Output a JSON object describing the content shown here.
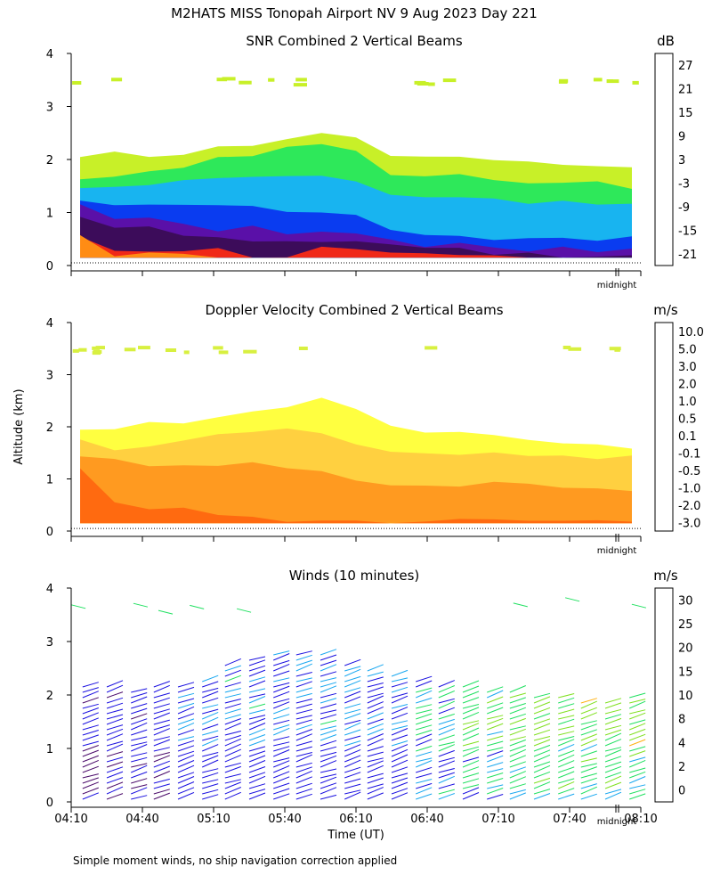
{
  "title": "M2HATS MISS Tonopah Airport NV   9 Aug 2023 Day 221",
  "footnote": "Simple moment winds, no ship navigation correction applied",
  "colors": {
    "snr": [
      "#c8f028",
      "#2ee85a",
      "#18b4f0",
      "#0a3cf0",
      "#5a10a8",
      "#3c0c5a",
      "#f02818",
      "#ff8c14",
      "#ffb800"
    ],
    "velocity": [
      "#ff1a1a",
      "#ff6a10",
      "#ff9a20",
      "#ffd040",
      "#ffff40",
      "#d8f040",
      "#9aeb30",
      "#30e020",
      "#1aa8ff",
      "#1040f0",
      "#2818d8",
      "#4a10a0",
      "#3a0a3a"
    ],
    "wind": [
      "#000000",
      "#4a0a6a",
      "#1a10e0",
      "#1aa8f0",
      "#20e060",
      "#80e020",
      "#ffb010",
      "#ff6010",
      "#ff2010"
    ]
  },
  "chart_data": [
    {
      "type": "heatmap",
      "title": "SNR Combined 2 Vertical Beams",
      "ylabel": "",
      "xlabel": "",
      "x": [
        "04:10",
        "04:40",
        "05:10",
        "05:40",
        "06:10",
        "06:40",
        "07:10",
        "07:40",
        "08:10"
      ],
      "ylim": [
        0,
        4
      ],
      "yticks": [
        "0",
        "1",
        "2",
        "3",
        "4"
      ],
      "xmarker": "midnight",
      "colorbar": {
        "unit": "dB",
        "labels": [
          "-21",
          "-15",
          "-9",
          "-3",
          "3",
          "9",
          "15",
          "21",
          "27"
        ]
      },
      "layers": [
        {
          "value": -21,
          "top_km": [
            2.0,
            2.1,
            2.1,
            2.1,
            2.2,
            2.3,
            2.4,
            2.5,
            2.4,
            2.1,
            2.1,
            2.0,
            2.0,
            2.0,
            1.9,
            1.9,
            1.9
          ]
        },
        {
          "value": -15,
          "top_km": [
            1.6,
            1.7,
            1.8,
            1.9,
            2.0,
            2.1,
            2.2,
            2.3,
            2.2,
            1.7,
            1.7,
            1.7,
            1.6,
            1.6,
            1.6,
            1.6,
            1.5
          ]
        },
        {
          "value": -9,
          "top_km": [
            1.4,
            1.5,
            1.5,
            1.6,
            1.6,
            1.7,
            1.7,
            1.7,
            1.6,
            1.3,
            1.3,
            1.3,
            1.3,
            1.2,
            1.2,
            1.2,
            1.2
          ]
        },
        {
          "value": -3,
          "top_km": [
            1.2,
            1.1,
            1.1,
            1.1,
            1.1,
            1.1,
            1.0,
            1.0,
            0.9,
            0.7,
            0.6,
            0.6,
            0.5,
            0.5,
            0.5,
            0.5,
            0.5
          ]
        },
        {
          "value": 3,
          "top_km": [
            1.1,
            0.9,
            0.9,
            0.8,
            0.7,
            0.7,
            0.6,
            0.6,
            0.6,
            0.5,
            0.4,
            0.4,
            0.3,
            0.3,
            0.3,
            0.3,
            0.3
          ]
        },
        {
          "value": 9,
          "top_km": [
            0.9,
            0.7,
            0.7,
            0.6,
            0.5,
            0.5,
            0.4,
            0.5,
            0.4,
            0.4,
            0.3,
            0.3,
            0.25,
            0.25,
            0.2,
            0.2,
            0.2
          ]
        },
        {
          "value": 15,
          "top_km": [
            0.6,
            0.3,
            0.3,
            0.3,
            0.3,
            0.2,
            0.2,
            0.3,
            0.3,
            0.3,
            0.25,
            0.25,
            0.2,
            0.0,
            0.0,
            0.0,
            0.0
          ]
        },
        {
          "value": 21,
          "top_km": [
            0.55,
            0.2,
            0.2,
            0.2,
            0.1,
            0.0,
            0.0,
            0.0,
            0.0,
            0.0,
            0.0,
            0.0,
            0.0,
            0.0,
            0.0,
            0.0,
            0.0
          ]
        }
      ],
      "upper_layer": {
        "value": -21,
        "altitude_km": 3.5
      }
    },
    {
      "type": "heatmap",
      "title": "Doppler Velocity Combined 2 Vertical Beams",
      "ylabel": "Altitude (km)",
      "xlabel": "",
      "x": [
        "04:10",
        "04:40",
        "05:10",
        "05:40",
        "06:10",
        "06:40",
        "07:10",
        "07:40",
        "08:10"
      ],
      "ylim": [
        0,
        4
      ],
      "yticks": [
        "0",
        "1",
        "2",
        "3",
        "4"
      ],
      "xmarker": "midnight",
      "colorbar": {
        "unit": "m/s",
        "labels": [
          "-3.0",
          "-2.0",
          "-1.0",
          "-0.5",
          "-0.1",
          "0.1",
          "0.5",
          "1.0",
          "2.0",
          "3.0",
          "5.0",
          "10.0"
        ]
      },
      "layers": [
        {
          "value": -0.1,
          "top_km": [
            2.0,
            2.0,
            2.1,
            2.1,
            2.2,
            2.3,
            2.4,
            2.5,
            2.4,
            2.0,
            1.9,
            1.9,
            1.8,
            1.8,
            1.7,
            1.7,
            1.6
          ]
        },
        {
          "value": -0.5,
          "top_km": [
            1.7,
            1.6,
            1.6,
            1.7,
            1.8,
            1.9,
            2.0,
            1.9,
            1.7,
            1.5,
            1.5,
            1.5,
            1.5,
            1.4,
            1.4,
            1.4,
            1.4
          ]
        },
        {
          "value": -1.0,
          "top_km": [
            1.4,
            1.4,
            1.3,
            1.3,
            1.3,
            1.3,
            1.2,
            1.1,
            1.0,
            0.9,
            0.9,
            0.9,
            0.9,
            0.9,
            0.8,
            0.8,
            0.8
          ]
        },
        {
          "value": -2.0,
          "top_km": [
            1.2,
            0.6,
            0.4,
            0.4,
            0.3,
            0.3,
            0.2,
            0.2,
            0.2,
            0.2,
            0.2,
            0.2,
            0.2,
            0.2,
            0.2,
            0.2,
            0.2
          ]
        }
      ],
      "upper_layer": {
        "value": 0.1,
        "altitude_km": 3.5
      }
    },
    {
      "type": "scatter",
      "title": "Winds (10 minutes)",
      "xlabel": "Time (UT)",
      "ylabel": "",
      "x": [
        "04:10",
        "04:40",
        "05:10",
        "05:40",
        "06:10",
        "06:40",
        "07:10",
        "07:40",
        "08:10"
      ],
      "ylim": [
        0,
        4
      ],
      "yticks": [
        "0",
        "1",
        "2",
        "3",
        "4"
      ],
      "xmarker": "midnight",
      "colorbar": {
        "unit": "m/s",
        "labels": [
          "0",
          "2",
          "4",
          "8",
          "10",
          "15",
          "20",
          "25",
          "30"
        ]
      },
      "profiles": [
        {
          "time_h": 0.08,
          "top_km": 2.2,
          "speed_ms": 4
        },
        {
          "time_h": 0.25,
          "top_km": 2.2,
          "speed_ms": 4
        },
        {
          "time_h": 0.42,
          "top_km": 2.1,
          "speed_ms": 4
        },
        {
          "time_h": 0.58,
          "top_km": 2.2,
          "speed_ms": 4
        },
        {
          "time_h": 0.75,
          "top_km": 2.2,
          "speed_ms": 6
        },
        {
          "time_h": 0.92,
          "top_km": 2.3,
          "speed_ms": 6
        },
        {
          "time_h": 1.08,
          "top_km": 2.6,
          "speed_ms": 6
        },
        {
          "time_h": 1.25,
          "top_km": 2.7,
          "speed_ms": 6
        },
        {
          "time_h": 1.42,
          "top_km": 2.8,
          "speed_ms": 6
        },
        {
          "time_h": 1.58,
          "top_km": 2.8,
          "speed_ms": 6
        },
        {
          "time_h": 1.75,
          "top_km": 2.8,
          "speed_ms": 6
        },
        {
          "time_h": 1.92,
          "top_km": 2.6,
          "speed_ms": 6
        },
        {
          "time_h": 2.08,
          "top_km": 2.5,
          "speed_ms": 6
        },
        {
          "time_h": 2.25,
          "top_km": 2.4,
          "speed_ms": 6
        },
        {
          "time_h": 2.42,
          "top_km": 2.3,
          "speed_ms": 8
        },
        {
          "time_h": 2.58,
          "top_km": 2.2,
          "speed_ms": 8
        },
        {
          "time_h": 2.75,
          "top_km": 2.2,
          "speed_ms": 10
        },
        {
          "time_h": 2.92,
          "top_km": 2.1,
          "speed_ms": 10
        },
        {
          "time_h": 3.08,
          "top_km": 2.1,
          "speed_ms": 12
        },
        {
          "time_h": 3.25,
          "top_km": 2.0,
          "speed_ms": 12
        },
        {
          "time_h": 3.42,
          "top_km": 2.0,
          "speed_ms": 12
        },
        {
          "time_h": 3.58,
          "top_km": 1.9,
          "speed_ms": 12
        },
        {
          "time_h": 3.75,
          "top_km": 1.9,
          "speed_ms": 12
        },
        {
          "time_h": 3.92,
          "top_km": 2.0,
          "speed_ms": 12
        }
      ],
      "upper_winds": {
        "altitude_km": 3.7,
        "speed_ms": 10
      }
    }
  ]
}
